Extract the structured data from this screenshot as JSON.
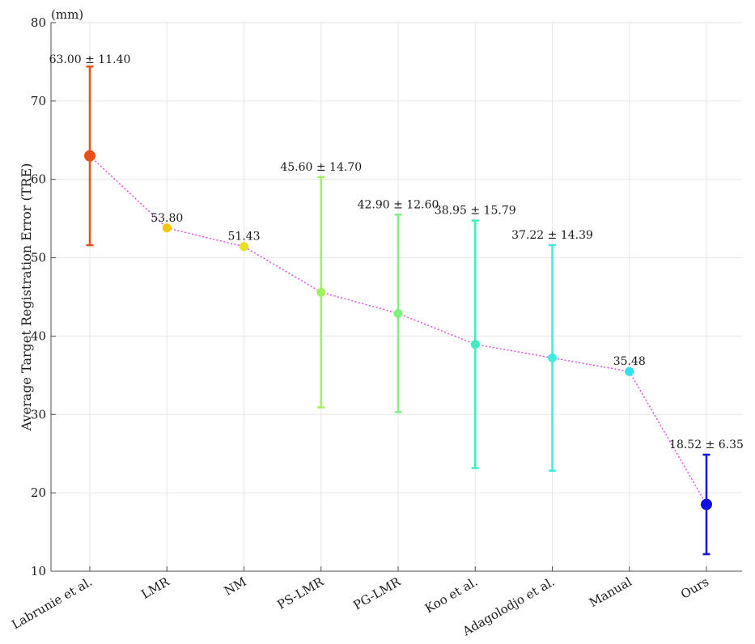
{
  "chart_data": {
    "type": "scatter",
    "unit_label": "(mm)",
    "ylabel": "Average Target Registration Error (TRE)",
    "xlabel": "",
    "ylim": [
      10,
      80
    ],
    "yticks": [
      10,
      20,
      30,
      40,
      50,
      60,
      70,
      80
    ],
    "grid": true,
    "connector_color": "#e040e0",
    "categories": [
      "Labrunie et al.",
      "LMR",
      "NM",
      "PS-LMR",
      "PG-LMR",
      "Koo et al.",
      "Adagolodjo et al.",
      "Manual",
      "Ours"
    ],
    "points": [
      {
        "category": "Labrunie et al.",
        "mean": 63.0,
        "std": 11.4,
        "label": "63.00 ± 11.40",
        "color": "#e8501a"
      },
      {
        "category": "LMR",
        "mean": 53.8,
        "std": null,
        "label": "53.80",
        "color": "#f5c800"
      },
      {
        "category": "NM",
        "mean": 51.43,
        "std": null,
        "label": "51.43",
        "color": "#e8e020"
      },
      {
        "category": "PS-LMR",
        "mean": 45.6,
        "std": 14.7,
        "label": "45.60 ± 14.70",
        "color": "#a0f060"
      },
      {
        "category": "PG-LMR",
        "mean": 42.9,
        "std": 12.6,
        "label": "42.90 ± 12.60",
        "color": "#80f080"
      },
      {
        "category": "Koo et al.",
        "mean": 38.95,
        "std": 15.79,
        "label": "38.95 ± 15.79",
        "color": "#40ecc0"
      },
      {
        "category": "Adagolodjo et al.",
        "mean": 37.22,
        "std": 14.39,
        "label": "37.22 ± 14.39",
        "color": "#40ece0"
      },
      {
        "category": "Manual",
        "mean": 35.48,
        "std": null,
        "label": "35.48",
        "color": "#30e0f0"
      },
      {
        "category": "Ours",
        "mean": 18.52,
        "std": 6.35,
        "label": "18.52 ± 6.35",
        "color": "#1010e0"
      }
    ]
  }
}
